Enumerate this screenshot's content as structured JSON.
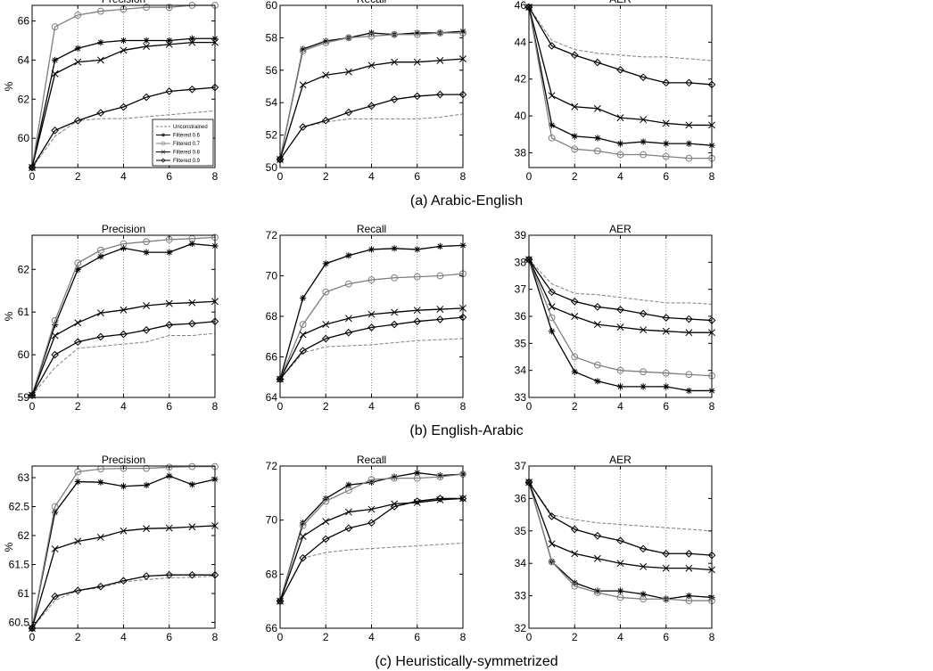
{
  "legend": {
    "entries": [
      "Unconstrained",
      "Filtered 0.6",
      "Filtered 0.7",
      "Filtered 0.8",
      "Filtered 0.9"
    ]
  },
  "chart_data": [
    {
      "type": "line",
      "title": "Precision",
      "ylabel": "%",
      "x": [
        0,
        1,
        2,
        3,
        4,
        5,
        6,
        7,
        8
      ],
      "xlim": [
        0,
        8
      ],
      "xticks": [
        0,
        2,
        4,
        6,
        8
      ],
      "ylim": [
        58.5,
        66.8
      ],
      "yticks": [
        60,
        62,
        64,
        66
      ],
      "grid": true,
      "legend_position": "bottom-right",
      "series": [
        {
          "name": "Unconstrained",
          "values": [
            58.5,
            60.1,
            60.9,
            61.0,
            61.0,
            61.1,
            61.2,
            61.3,
            61.4
          ]
        },
        {
          "name": "Filtered 0.6",
          "values": [
            58.5,
            64.0,
            64.6,
            64.9,
            65.0,
            65.0,
            65.0,
            65.1,
            65.1
          ]
        },
        {
          "name": "Filtered 0.7",
          "values": [
            58.5,
            65.7,
            66.3,
            66.5,
            66.6,
            66.7,
            66.7,
            66.8,
            66.8
          ]
        },
        {
          "name": "Filtered 0.8",
          "values": [
            58.5,
            63.3,
            63.9,
            64.0,
            64.5,
            64.7,
            64.8,
            64.9,
            64.9
          ]
        },
        {
          "name": "Filtered 0.9",
          "values": [
            58.5,
            60.4,
            60.9,
            61.3,
            61.6,
            62.1,
            62.4,
            62.5,
            62.6
          ]
        }
      ]
    },
    {
      "type": "line",
      "title": "Recall",
      "x": [
        0,
        1,
        2,
        3,
        4,
        5,
        6,
        7,
        8
      ],
      "xlim": [
        0,
        8
      ],
      "xticks": [
        0,
        2,
        4,
        6,
        8
      ],
      "ylim": [
        50,
        60
      ],
      "yticks": [
        50,
        52,
        54,
        56,
        58,
        60
      ],
      "grid": true,
      "series": [
        {
          "name": "Unconstrained",
          "values": [
            50.5,
            52.5,
            52.8,
            53.0,
            53.0,
            53.0,
            53.0,
            53.1,
            53.3
          ]
        },
        {
          "name": "Filtered 0.6",
          "values": [
            50.5,
            57.3,
            57.8,
            58.0,
            58.3,
            58.2,
            58.3,
            58.3,
            58.4
          ]
        },
        {
          "name": "Filtered 0.7",
          "values": [
            50.5,
            57.2,
            57.7,
            58.0,
            58.1,
            58.2,
            58.2,
            58.3,
            58.3
          ]
        },
        {
          "name": "Filtered 0.8",
          "values": [
            50.5,
            55.1,
            55.7,
            55.9,
            56.3,
            56.5,
            56.5,
            56.6,
            56.7
          ]
        },
        {
          "name": "Filtered 0.9",
          "values": [
            50.5,
            52.5,
            52.9,
            53.4,
            53.8,
            54.2,
            54.4,
            54.5,
            54.5
          ]
        }
      ]
    },
    {
      "type": "line",
      "title": "AER",
      "x": [
        0,
        1,
        2,
        3,
        4,
        5,
        6,
        7,
        8
      ],
      "xlim": [
        0,
        8
      ],
      "xticks": [
        0,
        2,
        4,
        6,
        8
      ],
      "ylim": [
        37.2,
        46
      ],
      "yticks": [
        38,
        40,
        42,
        44,
        46
      ],
      "grid": true,
      "series": [
        {
          "name": "Unconstrained",
          "values": [
            45.9,
            44.1,
            43.6,
            43.4,
            43.3,
            43.2,
            43.2,
            43.1,
            43.0
          ]
        },
        {
          "name": "Filtered 0.6",
          "values": [
            45.9,
            39.5,
            38.9,
            38.8,
            38.5,
            38.6,
            38.5,
            38.5,
            38.4
          ]
        },
        {
          "name": "Filtered 0.7",
          "values": [
            45.9,
            38.8,
            38.2,
            38.1,
            37.9,
            37.9,
            37.8,
            37.7,
            37.7
          ]
        },
        {
          "name": "Filtered 0.8",
          "values": [
            45.9,
            41.1,
            40.5,
            40.4,
            39.9,
            39.8,
            39.6,
            39.5,
            39.5
          ]
        },
        {
          "name": "Filtered 0.9",
          "values": [
            45.9,
            43.8,
            43.3,
            42.9,
            42.5,
            42.1,
            41.8,
            41.8,
            41.7
          ]
        }
      ]
    },
    {
      "type": "line",
      "title": "Precision",
      "ylabel": "%",
      "x": [
        0,
        1,
        2,
        3,
        4,
        5,
        6,
        7,
        8
      ],
      "xlim": [
        0,
        8
      ],
      "xticks": [
        0,
        2,
        4,
        6,
        8
      ],
      "ylim": [
        59,
        62.8
      ],
      "yticks": [
        59,
        60,
        61,
        62
      ],
      "grid": true,
      "series": [
        {
          "name": "Unconstrained",
          "values": [
            59.05,
            59.7,
            60.15,
            60.2,
            60.25,
            60.3,
            60.45,
            60.45,
            60.5
          ]
        },
        {
          "name": "Filtered 0.6",
          "values": [
            59.05,
            60.7,
            62.0,
            62.3,
            62.5,
            62.4,
            62.4,
            62.6,
            62.55
          ]
        },
        {
          "name": "Filtered 0.7",
          "values": [
            59.05,
            60.8,
            62.15,
            62.45,
            62.6,
            62.65,
            62.7,
            62.72,
            62.75
          ]
        },
        {
          "name": "Filtered 0.8",
          "values": [
            59.05,
            60.45,
            60.75,
            60.98,
            61.05,
            61.15,
            61.2,
            61.22,
            61.25
          ]
        },
        {
          "name": "Filtered 0.9",
          "values": [
            59.05,
            60.0,
            60.3,
            60.42,
            60.48,
            60.58,
            60.7,
            60.73,
            60.78
          ]
        }
      ]
    },
    {
      "type": "line",
      "title": "Recall",
      "x": [
        0,
        1,
        2,
        3,
        4,
        5,
        6,
        7,
        8
      ],
      "xlim": [
        0,
        8
      ],
      "xticks": [
        0,
        2,
        4,
        6,
        8
      ],
      "ylim": [
        64,
        72
      ],
      "yticks": [
        64,
        66,
        68,
        70,
        72
      ],
      "grid": true,
      "series": [
        {
          "name": "Unconstrained",
          "values": [
            64.9,
            66.2,
            66.5,
            66.55,
            66.6,
            66.7,
            66.8,
            66.85,
            66.9
          ]
        },
        {
          "name": "Filtered 0.6",
          "values": [
            64.9,
            68.9,
            70.6,
            71.0,
            71.3,
            71.35,
            71.3,
            71.45,
            71.5
          ]
        },
        {
          "name": "Filtered 0.7",
          "values": [
            64.9,
            67.6,
            69.2,
            69.6,
            69.8,
            69.9,
            69.95,
            70.0,
            70.1
          ]
        },
        {
          "name": "Filtered 0.8",
          "values": [
            64.9,
            67.1,
            67.6,
            67.9,
            68.1,
            68.2,
            68.3,
            68.35,
            68.4
          ]
        },
        {
          "name": "Filtered 0.9",
          "values": [
            64.9,
            66.3,
            66.9,
            67.2,
            67.45,
            67.6,
            67.75,
            67.85,
            67.95
          ]
        }
      ]
    },
    {
      "type": "line",
      "title": "AER",
      "x": [
        0,
        1,
        2,
        3,
        4,
        5,
        6,
        7,
        8
      ],
      "xlim": [
        0,
        8
      ],
      "xticks": [
        0,
        2,
        4,
        6,
        8
      ],
      "ylim": [
        33,
        39
      ],
      "yticks": [
        33,
        34,
        35,
        36,
        37,
        38,
        39
      ],
      "grid": true,
      "series": [
        {
          "name": "Unconstrained",
          "values": [
            38.1,
            37.2,
            36.85,
            36.8,
            36.7,
            36.6,
            36.5,
            36.5,
            36.45
          ]
        },
        {
          "name": "Filtered 0.6",
          "values": [
            38.1,
            35.45,
            33.95,
            33.6,
            33.4,
            33.4,
            33.4,
            33.25,
            33.25
          ]
        },
        {
          "name": "Filtered 0.7",
          "values": [
            38.1,
            35.95,
            34.5,
            34.2,
            34.0,
            33.95,
            33.9,
            33.85,
            33.8
          ]
        },
        {
          "name": "Filtered 0.8",
          "values": [
            38.1,
            36.35,
            36.0,
            35.7,
            35.6,
            35.5,
            35.45,
            35.4,
            35.4
          ]
        },
        {
          "name": "Filtered 0.9",
          "values": [
            38.1,
            36.9,
            36.55,
            36.35,
            36.25,
            36.1,
            35.95,
            35.9,
            35.85
          ]
        }
      ]
    },
    {
      "type": "line",
      "title": "Precision",
      "ylabel": "%",
      "x": [
        0,
        1,
        2,
        3,
        4,
        5,
        6,
        7,
        8
      ],
      "xlim": [
        0,
        8
      ],
      "xticks": [
        0,
        2,
        4,
        6,
        8
      ],
      "ylim": [
        60.4,
        63.2
      ],
      "yticks": [
        60.5,
        61,
        61.5,
        62,
        62.5,
        63
      ],
      "yticklabels": [
        "60.5",
        "61",
        "61.5",
        "62",
        "62.5",
        "63"
      ],
      "grid": true,
      "series": [
        {
          "name": "Unconstrained",
          "values": [
            60.4,
            60.88,
            61.05,
            61.1,
            61.2,
            61.24,
            61.27,
            61.28,
            61.3
          ]
        },
        {
          "name": "Filtered 0.6",
          "values": [
            60.4,
            62.4,
            62.93,
            62.92,
            62.85,
            62.87,
            63.03,
            62.88,
            62.97
          ]
        },
        {
          "name": "Filtered 0.7",
          "values": [
            60.4,
            62.5,
            63.1,
            63.15,
            63.16,
            63.16,
            63.18,
            63.19,
            63.19
          ]
        },
        {
          "name": "Filtered 0.8",
          "values": [
            60.4,
            61.77,
            61.9,
            61.97,
            62.08,
            62.12,
            62.13,
            62.15,
            62.17
          ]
        },
        {
          "name": "Filtered 0.9",
          "values": [
            60.4,
            60.95,
            61.05,
            61.12,
            61.22,
            61.3,
            61.32,
            61.32,
            61.32
          ]
        }
      ]
    },
    {
      "type": "line",
      "title": "Recall",
      "x": [
        0,
        1,
        2,
        3,
        4,
        5,
        6,
        7,
        8
      ],
      "xlim": [
        0,
        8
      ],
      "xticks": [
        0,
        2,
        4,
        6,
        8
      ],
      "ylim": [
        66,
        72
      ],
      "yticks": [
        66,
        68,
        70,
        72
      ],
      "grid": true,
      "series": [
        {
          "name": "Unconstrained",
          "values": [
            67.0,
            68.6,
            68.8,
            68.9,
            68.95,
            69.0,
            69.05,
            69.1,
            69.15
          ]
        },
        {
          "name": "Filtered 0.6",
          "values": [
            67.0,
            69.9,
            70.8,
            71.3,
            71.4,
            71.6,
            71.75,
            71.65,
            71.7
          ]
        },
        {
          "name": "Filtered 0.7",
          "values": [
            67.0,
            69.8,
            70.7,
            71.1,
            71.5,
            71.55,
            71.55,
            71.6,
            71.7
          ]
        },
        {
          "name": "Filtered 0.8",
          "values": [
            67.0,
            69.4,
            69.95,
            70.3,
            70.4,
            70.6,
            70.65,
            70.75,
            70.8
          ]
        },
        {
          "name": "Filtered 0.9",
          "values": [
            67.0,
            68.6,
            69.3,
            69.7,
            69.9,
            70.5,
            70.7,
            70.8,
            70.8
          ]
        }
      ]
    },
    {
      "type": "line",
      "title": "AER",
      "x": [
        0,
        1,
        2,
        3,
        4,
        5,
        6,
        7,
        8
      ],
      "xlim": [
        0,
        8
      ],
      "xticks": [
        0,
        2,
        4,
        6,
        8
      ],
      "ylim": [
        32,
        37
      ],
      "yticks": [
        32,
        33,
        34,
        35,
        36,
        37
      ],
      "grid": true,
      "series": [
        {
          "name": "Unconstrained",
          "values": [
            36.5,
            35.5,
            35.35,
            35.25,
            35.2,
            35.15,
            35.1,
            35.05,
            35.0
          ]
        },
        {
          "name": "Filtered 0.6",
          "values": [
            36.5,
            34.05,
            33.4,
            33.15,
            33.15,
            33.05,
            32.9,
            33.0,
            32.95
          ]
        },
        {
          "name": "Filtered 0.7",
          "values": [
            36.5,
            34.05,
            33.3,
            33.1,
            32.95,
            32.9,
            32.9,
            32.85,
            32.85
          ]
        },
        {
          "name": "Filtered 0.8",
          "values": [
            36.5,
            34.6,
            34.3,
            34.15,
            34.0,
            33.9,
            33.85,
            33.85,
            33.8
          ]
        },
        {
          "name": "Filtered 0.9",
          "values": [
            36.5,
            35.45,
            35.05,
            34.85,
            34.7,
            34.45,
            34.3,
            34.3,
            34.25
          ]
        }
      ]
    }
  ],
  "captions": [
    "(a) Arabic-English",
    "(b) English-Arabic",
    "(c) Heuristically-symmetrized"
  ],
  "style": {
    "series_colors": [
      "#7f7f7f",
      "#000000",
      "#7f7f7f",
      "#000000",
      "#000000"
    ],
    "series_markers": [
      "none",
      "asterisk",
      "circle",
      "x",
      "diamond"
    ]
  }
}
